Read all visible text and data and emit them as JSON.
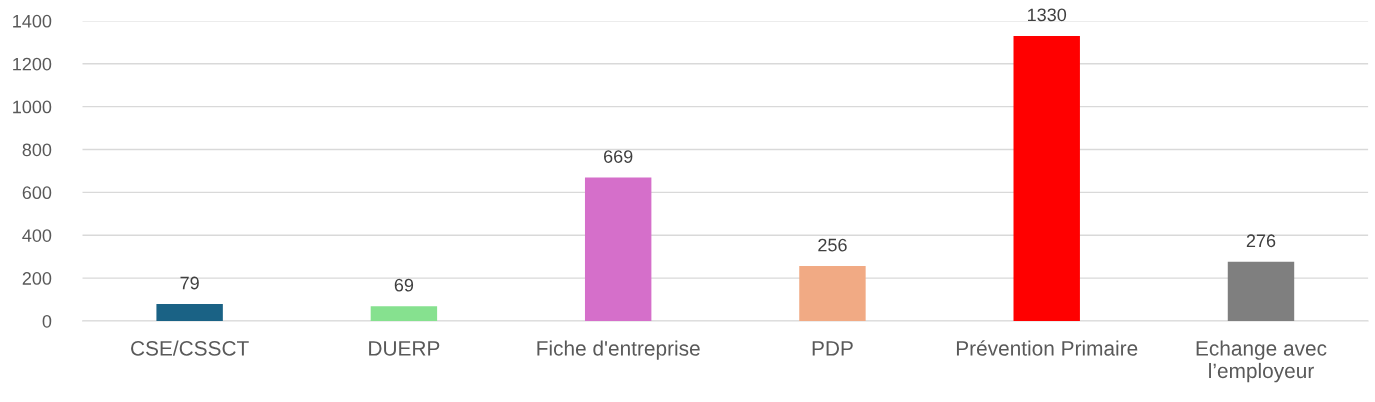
{
  "chart_data": {
    "type": "bar",
    "categories": [
      "CSE/CSSCT",
      "DUERP",
      "Fiche d'entreprise",
      "PDP",
      "Prévention Primaire",
      "Echange avec\nl’employeur"
    ],
    "values": [
      79,
      69,
      669,
      256,
      1330,
      276
    ],
    "colors": [
      "#1a6285",
      "#86e18f",
      "#d56fca",
      "#f1aa84",
      "#ff0000",
      "#7f7f7f"
    ],
    "ylim": [
      0,
      1400
    ],
    "yticks": [
      0,
      200,
      400,
      600,
      800,
      1000,
      1200,
      1400
    ],
    "grid": "y",
    "data_labels": true,
    "legend": false
  }
}
